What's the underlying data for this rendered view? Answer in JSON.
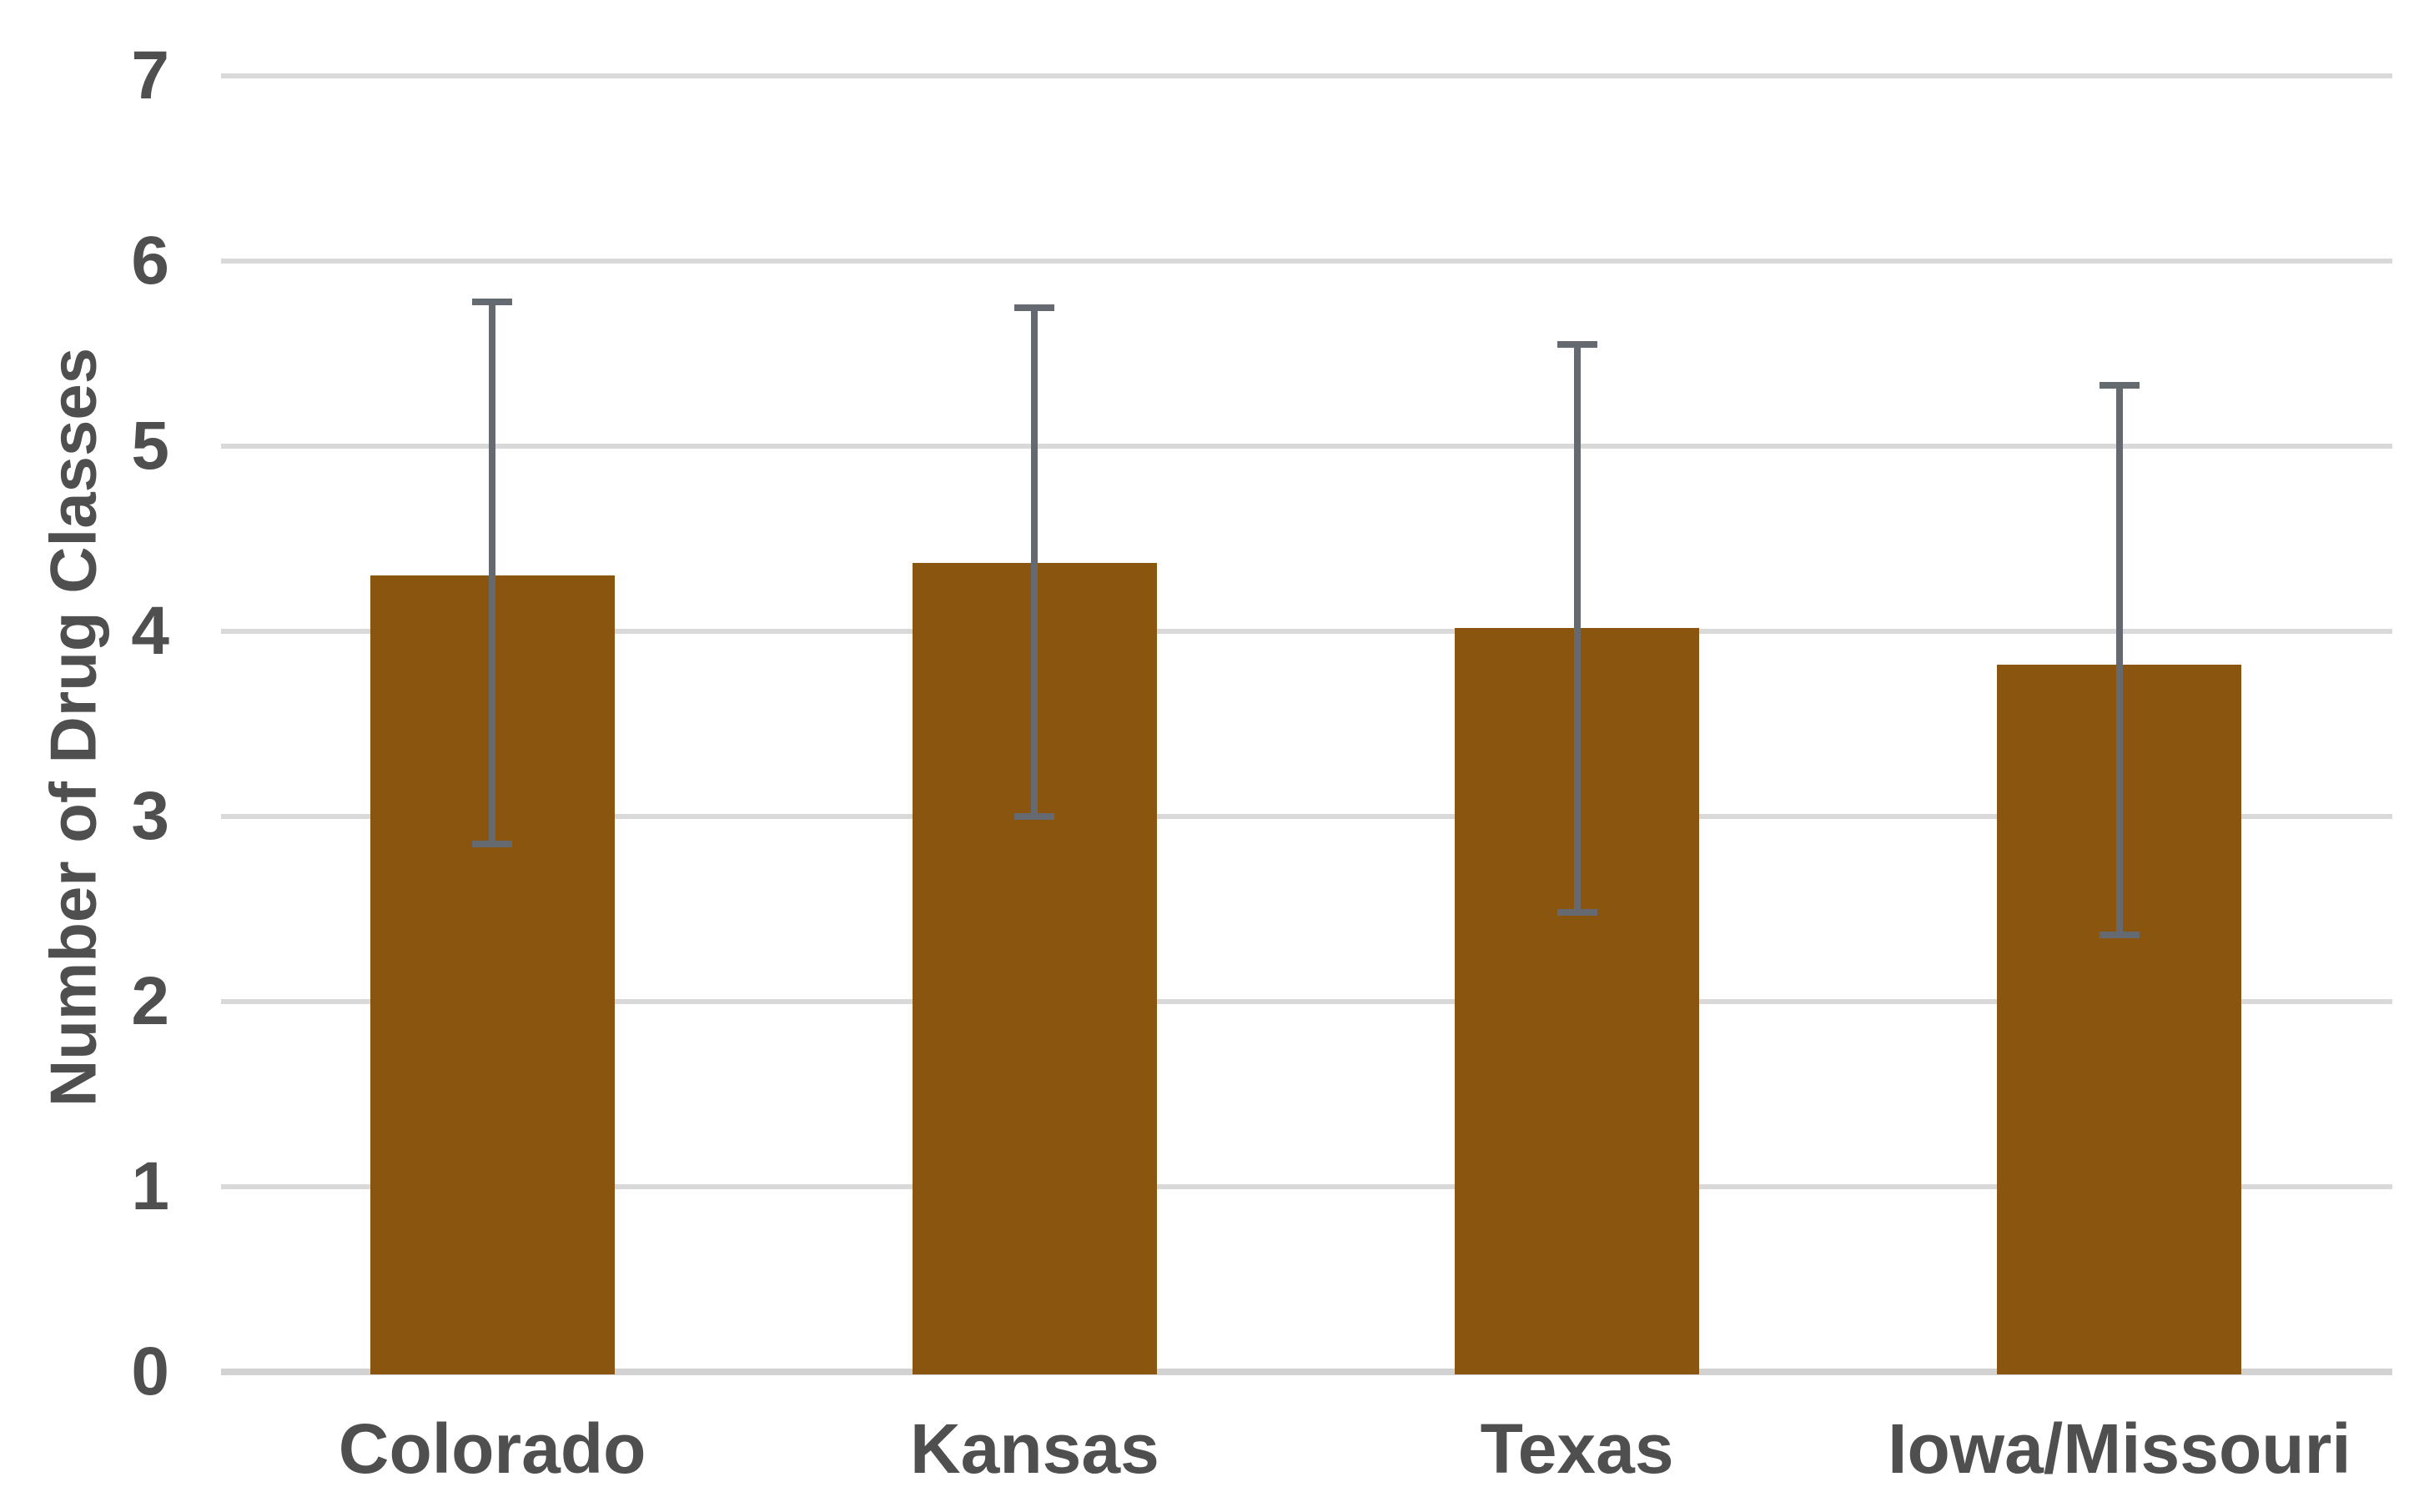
{
  "chart_data": {
    "type": "bar",
    "title": "",
    "xlabel": "",
    "ylabel": "Number of Drug Classes",
    "categories": [
      "Colorado",
      "Kansas",
      "Texas",
      "Iowa/Missouri"
    ],
    "values": [
      4.3,
      4.37,
      4.02,
      3.82
    ],
    "error_bars": {
      "upper_values": [
        5.78,
        5.75,
        5.55,
        5.33
      ],
      "lower_values": [
        2.85,
        3.0,
        2.48,
        2.36
      ]
    },
    "ylim": [
      0,
      7
    ],
    "yticks": [
      0,
      1,
      2,
      3,
      4,
      5,
      6,
      7
    ],
    "grid": true,
    "legend": false,
    "colors": {
      "bar_fill": "#8A550F",
      "gridline": "#D9D9D9",
      "axis_line": "#D2D2D2",
      "error_bar": "#646A70",
      "label_text": "#4F4F4F",
      "background": "#FFFFFF"
    }
  }
}
